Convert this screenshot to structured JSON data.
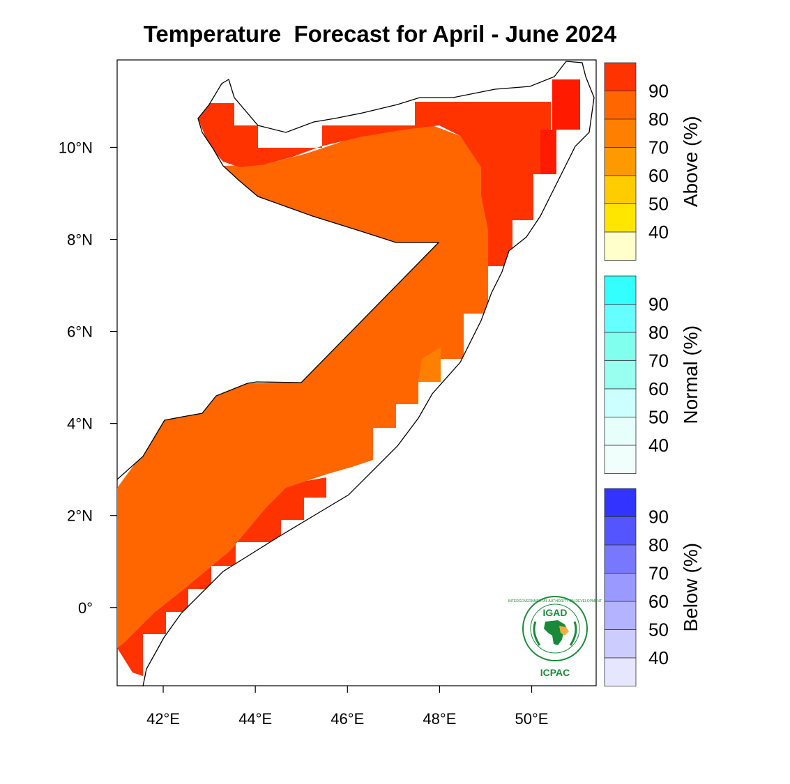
{
  "title": "Temperature  Forecast for April - June 2024",
  "map": {
    "lon_range": [
      41.0,
      51.4
    ],
    "lat_range": [
      -1.7,
      11.9
    ],
    "x_ticks": [
      {
        "value": 42,
        "label": "42°E"
      },
      {
        "value": 44,
        "label": "44°E"
      },
      {
        "value": 46,
        "label": "46°E"
      },
      {
        "value": 48,
        "label": "48°E"
      },
      {
        "value": 50,
        "label": "50°E"
      }
    ],
    "y_ticks": [
      {
        "value": 10,
        "label": "10°N"
      },
      {
        "value": 8,
        "label": "8°N"
      },
      {
        "value": 6,
        "label": "6°N"
      },
      {
        "value": 4,
        "label": "4°N"
      },
      {
        "value": 2,
        "label": "2°N"
      },
      {
        "value": 0,
        "label": "0°"
      }
    ],
    "forecast_category": "Above",
    "regions": [
      {
        "name": "northern-coast-90",
        "category": "Above",
        "probability": 90,
        "color": "#ff3300"
      },
      {
        "name": "northeast-tip-90plus",
        "category": "Above",
        "probability": 95,
        "color": "#ff1a00"
      },
      {
        "name": "central-interior-80",
        "category": "Above",
        "probability": 80,
        "color": "#ff6600"
      },
      {
        "name": "southern-coast-90",
        "category": "Above",
        "probability": 90,
        "color": "#ff3300"
      },
      {
        "name": "east-coast-70",
        "category": "Above",
        "probability": 70,
        "color": "#ff8000"
      }
    ]
  },
  "legends": [
    {
      "name": "above",
      "title": "Above (%)",
      "labels": [
        "90",
        "80",
        "70",
        "60",
        "50",
        "40"
      ],
      "colors": [
        "#ff3300",
        "#ff6600",
        "#ff8000",
        "#ff9900",
        "#ffcc00",
        "#ffe600",
        "#ffffcc"
      ]
    },
    {
      "name": "normal",
      "title": "Normal (%)",
      "labels": [
        "90",
        "80",
        "70",
        "60",
        "50",
        "40"
      ],
      "colors": [
        "#33ffff",
        "#66ffff",
        "#80ffee",
        "#99ffee",
        "#ccffff",
        "#e6fffa",
        "#f0fffb"
      ]
    },
    {
      "name": "below",
      "title": "Below (%)",
      "labels": [
        "90",
        "80",
        "70",
        "60",
        "50",
        "40"
      ],
      "colors": [
        "#3333ff",
        "#5555ff",
        "#7777ff",
        "#9999ff",
        "#b3b3ff",
        "#ccccff",
        "#e6e6ff"
      ]
    }
  ],
  "logo": {
    "top_text": "IGAD",
    "bottom_text": "ICPAC",
    "ring_text": "INTERGOVERNMENTAL AUTHORITY ON DEVELOPMENT",
    "color": "#1a8a3a"
  }
}
